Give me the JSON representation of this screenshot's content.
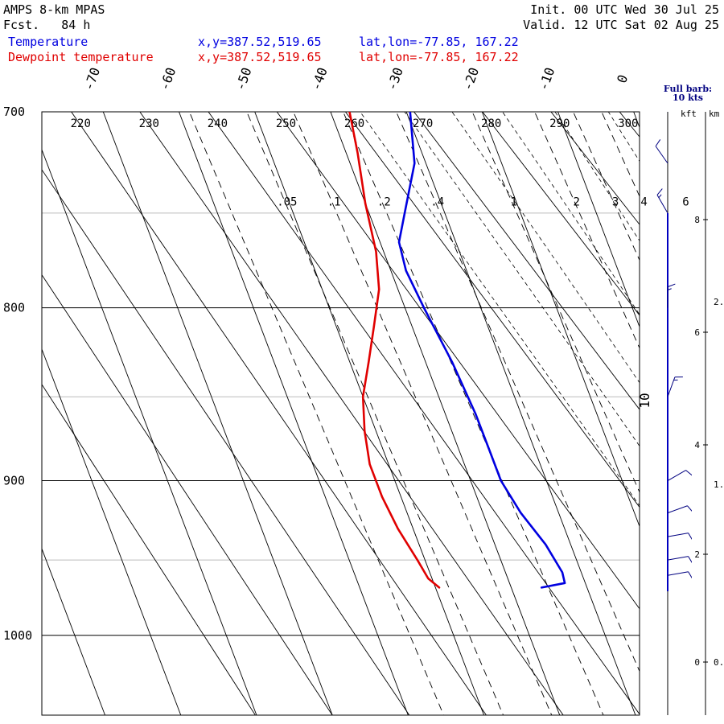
{
  "header": {
    "model": "AMPS 8-km MPAS",
    "fcst_label": "Fcst.",
    "fcst_hours": "84 h",
    "init": "Init. 00 UTC Wed 30 Jul 25",
    "valid": "Valid. 12 UTC Sat 02 Aug 25"
  },
  "legend": [
    {
      "label": "Temperature",
      "xy": "x,y=387.52,519.65",
      "latlon": "lat,lon=-77.85, 167.22",
      "color": "#0000e0"
    },
    {
      "label": "Dewpoint temperature",
      "xy": "x,y=387.52,519.65",
      "latlon": "lat,lon=-77.85, 167.22",
      "color": "#e00000"
    }
  ],
  "barb_note": {
    "line1": "Full barb:",
    "line2": "10 kts"
  },
  "height_axis": {
    "kft_label": "kft",
    "km_label": "km"
  },
  "chart_data": {
    "type": "line",
    "subtype": "skew-T log-p sounding",
    "pressure_ticks": [
      700,
      800,
      900,
      1000
    ],
    "pressure_range": [
      700,
      1040
    ],
    "minor_pressure_lines": [
      750,
      850,
      950
    ],
    "isotherm_labels": [
      -70,
      -60,
      -50,
      -40,
      -30,
      -20,
      -10,
      0,
      10
    ],
    "dry_adiabat_labels": [
      220,
      230,
      240,
      250,
      260,
      270,
      280,
      290,
      300
    ],
    "mixing_ratio_labels": [
      ".05",
      ".1",
      ".2",
      ".4",
      "1",
      "2",
      "3",
      "4",
      "6"
    ],
    "kft_ticks": [
      0,
      2,
      4,
      6,
      8
    ],
    "km_ticks": [
      "0.",
      "1.",
      "2."
    ],
    "series": [
      {
        "name": "Temperature",
        "color": "#0000e0",
        "points": [
          [
            700,
            -29.5
          ],
          [
            725,
            -31.5
          ],
          [
            748,
            -35
          ],
          [
            765,
            -37.5
          ],
          [
            780,
            -38
          ],
          [
            800,
            -37.5
          ],
          [
            830,
            -36.5
          ],
          [
            860,
            -36
          ],
          [
            880,
            -36
          ],
          [
            900,
            -36
          ],
          [
            920,
            -35
          ],
          [
            940,
            -33.3
          ],
          [
            958,
            -32.5
          ],
          [
            965,
            -32.7
          ],
          [
            968,
            -36
          ]
        ]
      },
      {
        "name": "Dewpoint temperature",
        "color": "#e00000",
        "points": [
          [
            700,
            -37.5
          ],
          [
            720,
            -38.5
          ],
          [
            745,
            -40
          ],
          [
            770,
            -41
          ],
          [
            790,
            -42.5
          ],
          [
            810,
            -45
          ],
          [
            830,
            -47.5
          ],
          [
            850,
            -50
          ],
          [
            870,
            -51.5
          ],
          [
            890,
            -52.5
          ],
          [
            910,
            -52.5
          ],
          [
            930,
            -52
          ],
          [
            950,
            -51
          ],
          [
            962,
            -50.5
          ],
          [
            968,
            -49.5
          ]
        ]
      }
    ],
    "wind_barbs": [
      {
        "p": 700,
        "dir": 140,
        "spd": 10
      },
      {
        "p": 725,
        "dir": 145,
        "spd": 10
      },
      {
        "p": 750,
        "dir": 150,
        "spd": 5
      },
      {
        "p": 800,
        "dir": 180,
        "spd": 5
      },
      {
        "p": 850,
        "dir": 200,
        "spd": 5
      },
      {
        "p": 900,
        "dir": 240,
        "spd": 10
      },
      {
        "p": 920,
        "dir": 250,
        "spd": 10
      },
      {
        "p": 935,
        "dir": 260,
        "spd": 10
      },
      {
        "p": 950,
        "dir": 260,
        "spd": 10
      },
      {
        "p": 960,
        "dir": 260,
        "spd": 10
      }
    ]
  }
}
